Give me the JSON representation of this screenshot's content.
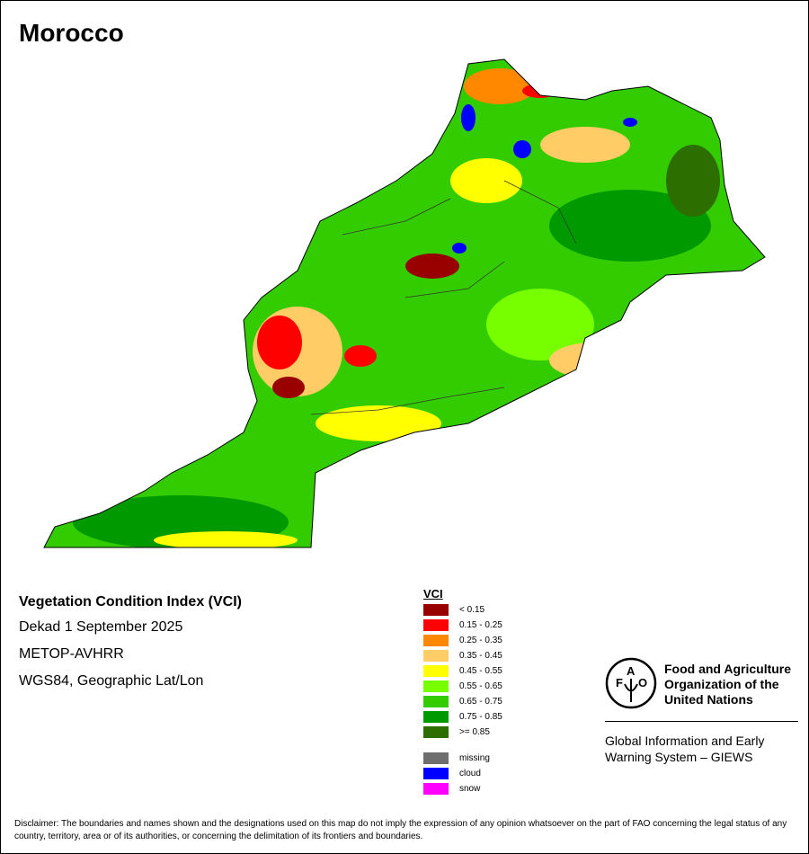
{
  "title": "Morocco",
  "info": {
    "index": "Vegetation Condition Index (VCI)",
    "period": "Dekad 1 September 2025",
    "sensor": "METOP-AVHRR",
    "projection": "WGS84, Geographic Lat/Lon"
  },
  "legend": {
    "title": "VCI",
    "classes": [
      {
        "label": "< 0.15",
        "color": "#990000"
      },
      {
        "label": "0.15 - 0.25",
        "color": "#ff0000"
      },
      {
        "label": "0.25 - 0.35",
        "color": "#ff8800"
      },
      {
        "label": "0.35 - 0.45",
        "color": "#ffcc66"
      },
      {
        "label": "0.45 - 0.55",
        "color": "#ffff00"
      },
      {
        "label": "0.55 - 0.65",
        "color": "#77ff00"
      },
      {
        "label": "0.65 - 0.75",
        "color": "#33cc00"
      },
      {
        "label": "0.75 - 0.85",
        "color": "#009900"
      },
      {
        "label": ">= 0.85",
        "color": "#2d6e00"
      }
    ],
    "other": [
      {
        "label": "missing",
        "color": "#6e6e6e"
      },
      {
        "label": "cloud",
        "color": "#0000ff"
      },
      {
        "label": "snow",
        "color": "#ff00ff"
      }
    ]
  },
  "org": {
    "logo_text": "FAO FIAT PANIS",
    "name_lines": [
      "Food and Agriculture",
      "Organization of the",
      "United Nations"
    ],
    "giews_lines": [
      "Global Information and Early",
      "Warning System – GIEWS"
    ]
  },
  "disclaimer": "Disclaimer: The boundaries and names shown and the designations used on this map do not imply the expression of any opinion whatsoever on the part of FAO concerning the legal status of any country, territory, area or of its authorities, or concerning the delimitation of its frontiers and boundaries."
}
